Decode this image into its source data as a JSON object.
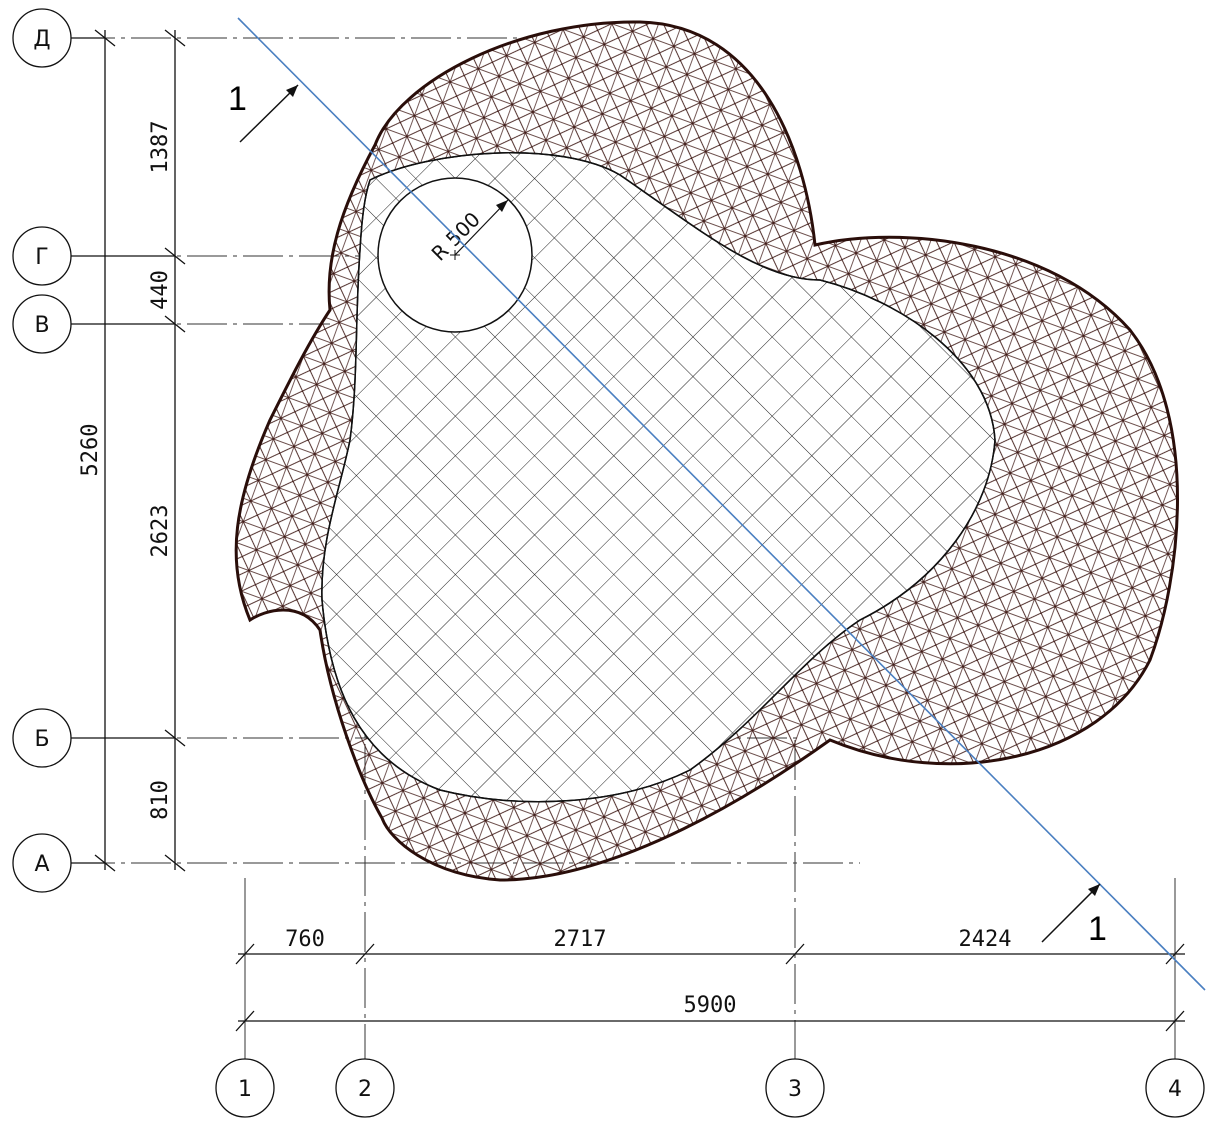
{
  "axes": {
    "rows": [
      "Д",
      "Г",
      "В",
      "Б",
      "А"
    ],
    "columns": [
      "1",
      "2",
      "3",
      "4"
    ]
  },
  "dimensions": {
    "vertical_total": "5260",
    "vertical": [
      "1387",
      "440",
      "2623",
      "810"
    ],
    "horizontal": [
      "760",
      "2717",
      "2424"
    ],
    "horizontal_total": "5900"
  },
  "radius_label": "R 500",
  "section_mark": "1",
  "colors": {
    "line": "#111111",
    "mesh": "#3a1410",
    "section_line": "#4a7fc1",
    "hatch": "#222222"
  }
}
